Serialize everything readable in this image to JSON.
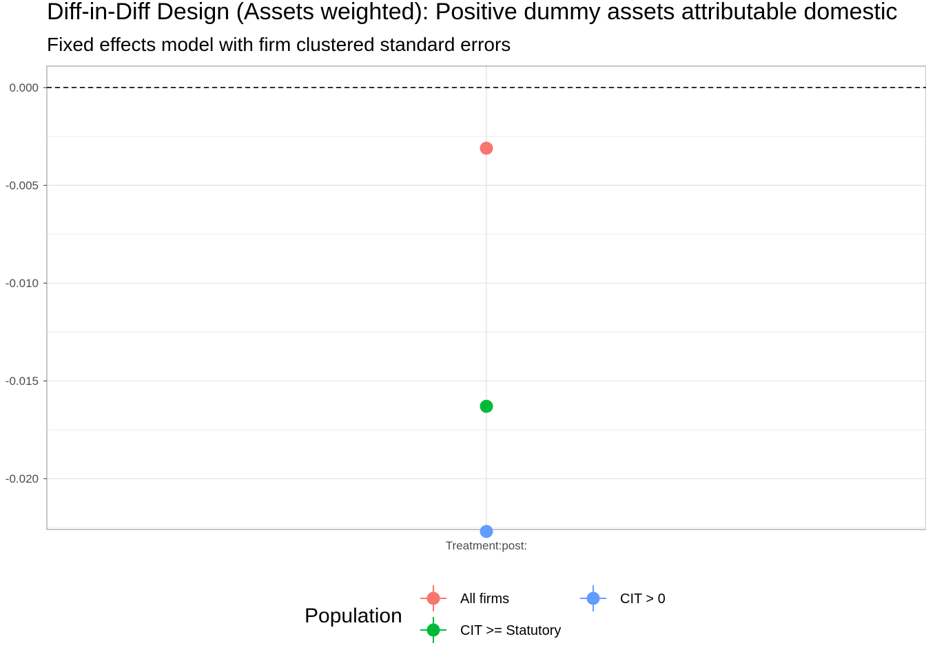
{
  "chart_data": {
    "type": "scatter",
    "title": "Diff-in-Diff Design (Assets weighted): Positive dummy assets attributable domestic",
    "subtitle": "Fixed effects model with firm clustered standard errors",
    "xlabel": "",
    "ylabel": "",
    "categories": [
      "Treatment:post:"
    ],
    "ylim": [
      -0.0226,
      0.0011
    ],
    "yticks": [
      0.0,
      -0.005,
      -0.01,
      -0.015,
      -0.02
    ],
    "ytick_labels": [
      "0.000",
      "-0.005",
      "-0.010",
      "-0.015",
      "-0.020"
    ],
    "reference_line": {
      "y": 0,
      "style": "dashed"
    },
    "grid": true,
    "series": [
      {
        "name": "All firms",
        "color": "#F8766D",
        "values": [
          -0.0031
        ]
      },
      {
        "name": "CIT >= Statutory",
        "color": "#00BA38",
        "values": [
          -0.0163
        ]
      },
      {
        "name": "CIT > 0",
        "color": "#619CFF",
        "values": [
          -0.0227
        ]
      }
    ],
    "legend": {
      "title": "Population",
      "placement": "bottom"
    }
  }
}
